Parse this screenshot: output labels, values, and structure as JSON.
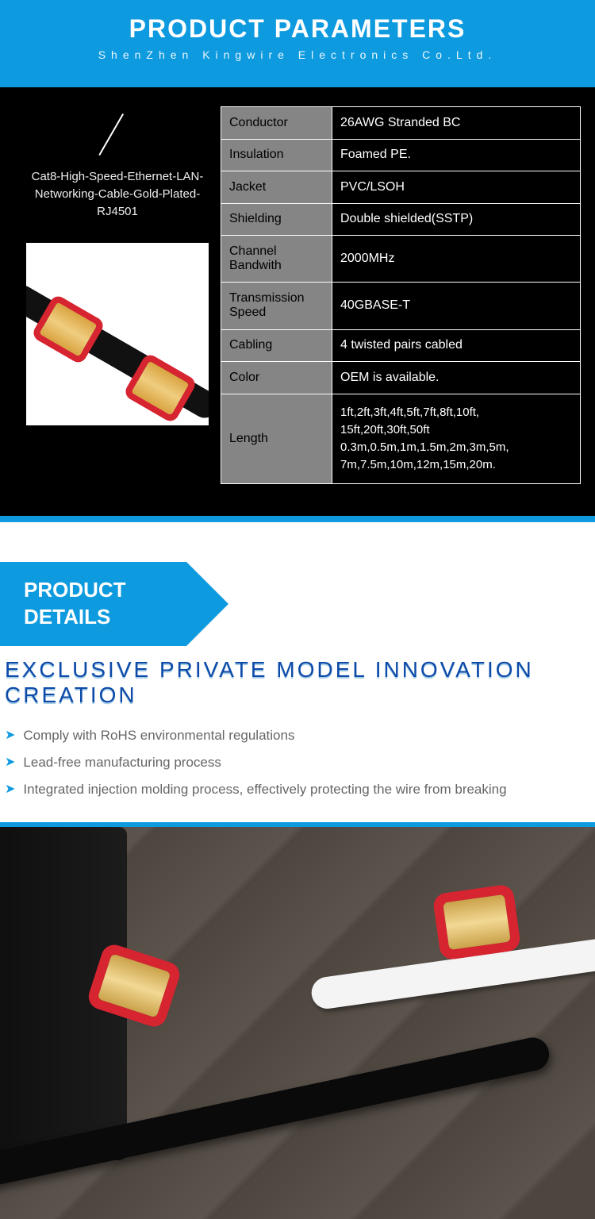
{
  "header": {
    "title": "PRODUCT PARAMETERS",
    "subtitle": "ShenZhen Kingwire Electronics Co.Ltd."
  },
  "product": {
    "name": "Cat8-High-Speed-Ethernet-LAN-Networking-Cable-Gold-Plated-RJ4501"
  },
  "spec_rows": [
    {
      "label": "Conductor",
      "value": "26AWG Stranded BC"
    },
    {
      "label": "Insulation",
      "value": "Foamed PE."
    },
    {
      "label": "Jacket",
      "value": "PVC/LSOH"
    },
    {
      "label": "Shielding",
      "value": "Double shielded(SSTP)"
    },
    {
      "label": "Channel Bandwith",
      "value": "2000MHz"
    },
    {
      "label": "Transmission Speed",
      "value": "40GBASE-T"
    },
    {
      "label": "Cabling",
      "value": "4 twisted pairs cabled"
    },
    {
      "label": "Color",
      "value": "OEM is available."
    },
    {
      "label": "Length",
      "value": "1ft,2ft,3ft,4ft,5ft,7ft,8ft,10ft,\n15ft,20ft,30ft,50ft\n0.3m,0.5m,1m,1.5m,2m,3m,5m,\n7m,7.5m,10m,12m,15m,20m."
    }
  ],
  "details_tab": {
    "line1": "PRODUCT",
    "line2": "DETAILS"
  },
  "slogan": "EXCLUSIVE PRIVATE MODEL INNOVATION CREATION",
  "bullets": [
    "Comply with RoHS environmental regulations",
    "Lead-free manufacturing process",
    "Integrated injection molding process, effectively protecting the wire from breaking"
  ],
  "colors": {
    "primary": "#0d9adf",
    "slogan": "#0d4aa8",
    "connector_red": "#d62430",
    "connector_gold": "#d9a440",
    "table_label_bg": "#858585"
  }
}
